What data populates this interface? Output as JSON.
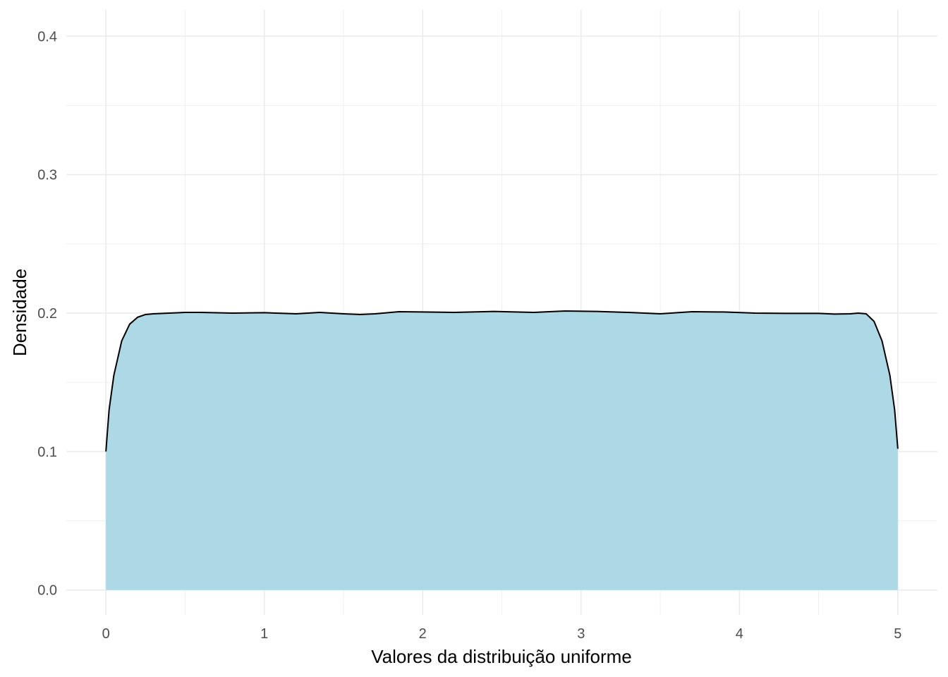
{
  "chart_data": {
    "type": "area",
    "title": "",
    "xlabel": "Valores da distribuição uniforme",
    "ylabel": "Densidade",
    "xlim": [
      -0.25,
      5.25
    ],
    "ylim": [
      -0.018,
      0.419
    ],
    "x_ticks": [
      0,
      1,
      2,
      3,
      4,
      5
    ],
    "x_tick_labels": [
      "0",
      "1",
      "2",
      "3",
      "4",
      "5"
    ],
    "y_ticks": [
      0,
      0.1,
      0.2,
      0.3,
      0.4
    ],
    "y_tick_labels": [
      "0.0",
      "0.1",
      "0.2",
      "0.3",
      "0.4"
    ],
    "grid": true,
    "legend": "none",
    "colors": {
      "fill": "#add8e6",
      "line": "#000000",
      "grid": "#ebebeb"
    },
    "series": [
      {
        "x": [
          0.0,
          0.02,
          0.05,
          0.1,
          0.15,
          0.2,
          0.25,
          0.3,
          0.4,
          0.5,
          0.6,
          0.8,
          1.0,
          1.2,
          1.35,
          1.5,
          1.6,
          1.7,
          1.85,
          2.0,
          2.2,
          2.45,
          2.7,
          2.9,
          3.1,
          3.3,
          3.5,
          3.7,
          3.9,
          4.1,
          4.3,
          4.5,
          4.6,
          4.7,
          4.75,
          4.8,
          4.85,
          4.9,
          4.95,
          4.98,
          5.0
        ],
        "y": [
          0.1,
          0.13,
          0.155,
          0.18,
          0.192,
          0.197,
          0.199,
          0.1995,
          0.2,
          0.2005,
          0.2005,
          0.2,
          0.2003,
          0.1995,
          0.2005,
          0.1995,
          0.199,
          0.1995,
          0.201,
          0.2008,
          0.2005,
          0.2012,
          0.2005,
          0.2015,
          0.2012,
          0.2005,
          0.1995,
          0.201,
          0.2008,
          0.2,
          0.1998,
          0.1998,
          0.1993,
          0.1995,
          0.2,
          0.1995,
          0.194,
          0.18,
          0.155,
          0.13,
          0.102
        ]
      }
    ]
  }
}
